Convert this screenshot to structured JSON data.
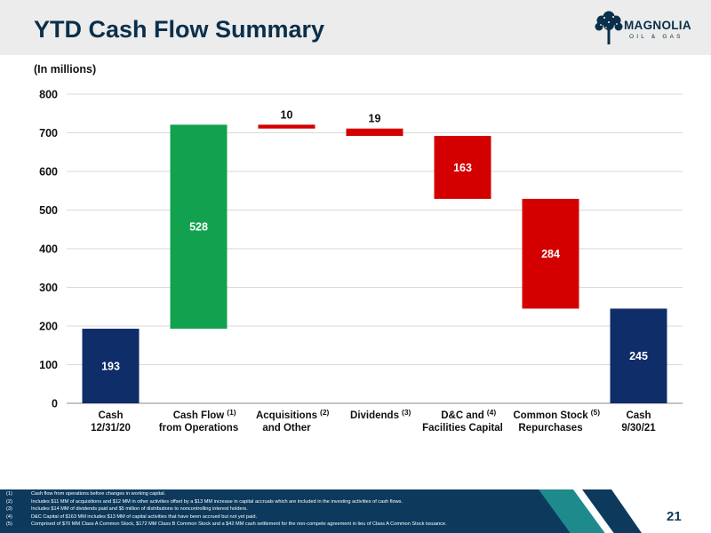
{
  "slide": {
    "title": "YTD Cash Flow Summary",
    "units": "(In millions)",
    "page_number": "21"
  },
  "logo": {
    "name": "MAGNOLIA",
    "subtitle": "OIL & GAS"
  },
  "colors": {
    "navy": "#0f2d69",
    "green": "#12a24f",
    "red": "#d40000",
    "header_band": "#ececec",
    "footer_band": "#0d3a5c"
  },
  "chart_data": {
    "type": "bar",
    "subtype": "waterfall",
    "ylim": [
      0,
      800
    ],
    "yticks": [
      "0",
      "100",
      "200",
      "300",
      "400",
      "500",
      "600",
      "700",
      "800"
    ],
    "grid": true,
    "legend": "none",
    "bars": [
      {
        "line1": "Cash",
        "line2": "12/31/20",
        "note": "",
        "start": 0,
        "end": 193,
        "label": "193",
        "kind": "total"
      },
      {
        "line1": "Cash Flow",
        "line2": "from Operations",
        "note": "(1)",
        "start": 193,
        "end": 721,
        "label": "528",
        "kind": "increase"
      },
      {
        "line1": "Acquisitions",
        "line2": "and Other",
        "note": "(2)",
        "start": 721,
        "end": 711,
        "label": "10",
        "kind": "decrease"
      },
      {
        "line1": "Dividends",
        "line2": "",
        "note": "(3)",
        "start": 711,
        "end": 692,
        "label": "19",
        "kind": "decrease"
      },
      {
        "line1": "D&C and",
        "line2": "Facilities Capital",
        "note": "(4)",
        "start": 692,
        "end": 529,
        "label": "163",
        "kind": "decrease"
      },
      {
        "line1": "Common Stock",
        "line2": "Repurchases",
        "note": "(5)",
        "start": 529,
        "end": 245,
        "label": "284",
        "kind": "decrease"
      },
      {
        "line1": "Cash",
        "line2": "9/30/21",
        "note": "",
        "start": 0,
        "end": 245,
        "label": "245",
        "kind": "total"
      }
    ]
  },
  "footnotes": [
    {
      "num": "(1)",
      "text": "Cash flow from operations before changes in working capital."
    },
    {
      "num": "(2)",
      "text": "Includes $11 MM of acquisitions and $12 MM in other activities offset by a $13 MM increase in capital accruals which are included in the investing activities of cash flows."
    },
    {
      "num": "(3)",
      "text": "Includes $14 MM of dividends paid and $5 million of distributions to noncontrolling interest holders."
    },
    {
      "num": "(4)",
      "text": "D&C Capital of $163 MM includes $13 MM of capital activities that have been accrued but not yet paid."
    },
    {
      "num": "(5)",
      "text": "Comprised of $70 MM Class A Common Stock, $172 MM Class B Common Stock and a $42 MM cash settlement for the non-compete agreement in lieu of Class A Common Stock issuance."
    }
  ]
}
